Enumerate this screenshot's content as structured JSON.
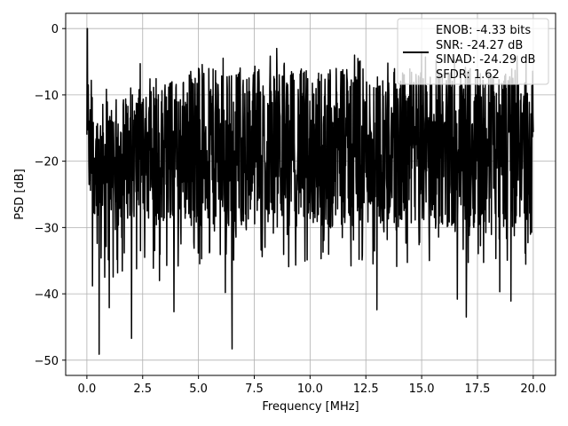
{
  "chart_data": {
    "type": "line",
    "title": "",
    "xlabel": "Frequency [MHz]",
    "ylabel": "PSD [dB]",
    "xlim": [
      -0.95,
      21.0
    ],
    "ylim": [
      -52.3,
      2.3
    ],
    "xticks": [
      0.0,
      2.5,
      5.0,
      7.5,
      10.0,
      12.5,
      15.0,
      17.5,
      20.0
    ],
    "xtick_labels": [
      "0.0",
      "2.5",
      "5.0",
      "7.5",
      "10.0",
      "12.5",
      "15.0",
      "17.5",
      "20.0"
    ],
    "yticks": [
      0,
      -10,
      -20,
      -30,
      -40,
      -50
    ],
    "ytick_labels": [
      "0",
      "−10",
      "−20",
      "−30",
      "−40",
      "−50"
    ],
    "grid": true,
    "legend_position": "top-right",
    "legend_lines": [
      "ENOB: -4.33 bits",
      "SNR: -24.27 dB",
      "SINAD: -24.29 dB",
      "SFDR: 1.62"
    ],
    "series": [
      {
        "color": "#000000",
        "x_range": [
          0.0,
          20.0
        ],
        "note_shape": "dense noise floor",
        "peaks": [
          [
            0.02,
            0.0
          ],
          [
            0.06,
            -8.5
          ],
          [
            0.2,
            -7.8
          ],
          [
            3.5,
            -8.5
          ],
          [
            5.0,
            -6.0
          ],
          [
            6.5,
            -5.5
          ],
          [
            8.5,
            -3.0
          ],
          [
            12.0,
            -4.0
          ],
          [
            15.0,
            -3.5
          ],
          [
            17.0,
            -2.5
          ]
        ],
        "dips": [
          [
            0.25,
            -38.8
          ],
          [
            0.55,
            -49.1
          ],
          [
            0.8,
            -37.5
          ],
          [
            1.0,
            -42.1
          ],
          [
            2.0,
            -46.7
          ],
          [
            2.4,
            -33.5
          ],
          [
            3.25,
            -38.0
          ],
          [
            3.9,
            -42.7
          ],
          [
            6.2,
            -39.8
          ],
          [
            6.5,
            -48.3
          ],
          [
            7.85,
            -34.4
          ],
          [
            10.5,
            -34.7
          ],
          [
            12.2,
            -34.8
          ],
          [
            13.0,
            -42.4
          ],
          [
            16.6,
            -40.8
          ],
          [
            17.0,
            -43.5
          ],
          [
            18.5,
            -39.7
          ],
          [
            19.0,
            -41.1
          ]
        ]
      }
    ]
  }
}
